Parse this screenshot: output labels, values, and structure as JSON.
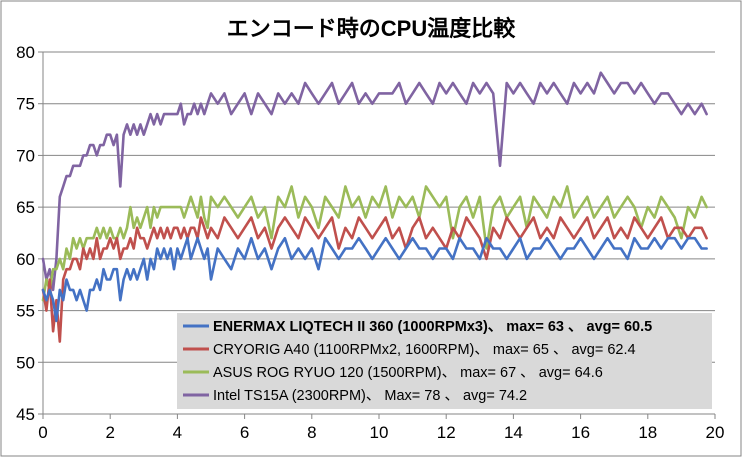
{
  "chart_data": {
    "type": "line",
    "title": "エンコード時のCPU温度比較",
    "xlim": [
      0,
      20
    ],
    "ylim": [
      45,
      80
    ],
    "xticks": [
      0,
      2,
      4,
      6,
      8,
      10,
      12,
      14,
      16,
      18,
      20
    ],
    "yticks": [
      45,
      50,
      55,
      60,
      65,
      70,
      75,
      80
    ],
    "grid": true,
    "legend_position": "bottom-right",
    "series": [
      {
        "name": "ENERMAX LIQTECH II 360 (1000RPMx3)、 max= 63 、 avg= 60.5",
        "color": "#4472C4",
        "bold": true,
        "x": [
          0.0,
          0.1,
          0.2,
          0.3,
          0.4,
          0.5,
          0.6,
          0.7,
          0.8,
          0.9,
          1.0,
          1.1,
          1.2,
          1.3,
          1.4,
          1.5,
          1.6,
          1.7,
          1.8,
          1.9,
          2.0,
          2.1,
          2.2,
          2.3,
          2.4,
          2.5,
          2.6,
          2.7,
          2.8,
          2.9,
          3.0,
          3.1,
          3.2,
          3.3,
          3.4,
          3.5,
          3.6,
          3.7,
          3.8,
          3.9,
          4.0,
          4.1,
          4.2,
          4.3,
          4.4,
          4.5,
          4.6,
          4.7,
          4.8,
          4.9,
          5.0,
          5.2,
          5.4,
          5.6,
          5.8,
          6.0,
          6.2,
          6.4,
          6.6,
          6.8,
          7.0,
          7.2,
          7.4,
          7.6,
          7.8,
          8.0,
          8.2,
          8.4,
          8.6,
          8.8,
          9.0,
          9.2,
          9.4,
          9.6,
          9.8,
          10.0,
          10.2,
          10.4,
          10.6,
          10.8,
          11.0,
          11.2,
          11.4,
          11.6,
          11.8,
          12.0,
          12.2,
          12.4,
          12.6,
          12.8,
          13.0,
          13.2,
          13.4,
          13.6,
          13.8,
          14.0,
          14.2,
          14.4,
          14.6,
          14.8,
          15.0,
          15.2,
          15.4,
          15.6,
          15.8,
          16.0,
          16.2,
          16.4,
          16.6,
          16.8,
          17.0,
          17.2,
          17.4,
          17.6,
          17.8,
          18.0,
          18.2,
          18.4,
          18.6,
          18.8,
          19.0,
          19.2,
          19.4,
          19.6,
          19.75
        ],
        "values": [
          57,
          56,
          57,
          56,
          54,
          57,
          56,
          58,
          57,
          57,
          56,
          57,
          56,
          55,
          57,
          57,
          58,
          57,
          59,
          58,
          58,
          59,
          59,
          56,
          58,
          59,
          58,
          59,
          58,
          59,
          60,
          58,
          60,
          59,
          61,
          60,
          61,
          60,
          61,
          59,
          61,
          60,
          61,
          62,
          60,
          61,
          62,
          61,
          60,
          61,
          58,
          61,
          60,
          59,
          61,
          60,
          62,
          60,
          61,
          59,
          61,
          62,
          60,
          61,
          60,
          61,
          59,
          62,
          61,
          60,
          61,
          61,
          62,
          61,
          60,
          61,
          62,
          61,
          60,
          61,
          62,
          61,
          61,
          60,
          61,
          61,
          60,
          62,
          61,
          61,
          60,
          62,
          61,
          61,
          60,
          61,
          62,
          60,
          61,
          61,
          62,
          61,
          60,
          61,
          61,
          62,
          61,
          60,
          61,
          62,
          61,
          61,
          60,
          62,
          61,
          61,
          62,
          61,
          62,
          62,
          61,
          62,
          62,
          61,
          61
        ]
      },
      {
        "name": "CRYORIG A40 (1100RPMx2, 1600RPM)、 max= 65 、 avg= 62.4",
        "color": "#C0504D",
        "bold": false,
        "x": [
          0.0,
          0.1,
          0.2,
          0.3,
          0.4,
          0.5,
          0.6,
          0.7,
          0.8,
          0.9,
          1.0,
          1.1,
          1.2,
          1.3,
          1.4,
          1.5,
          1.6,
          1.7,
          1.8,
          1.9,
          2.0,
          2.1,
          2.2,
          2.3,
          2.4,
          2.5,
          2.6,
          2.7,
          2.8,
          2.9,
          3.0,
          3.1,
          3.2,
          3.3,
          3.4,
          3.5,
          3.6,
          3.7,
          3.8,
          3.9,
          4.0,
          4.1,
          4.2,
          4.3,
          4.4,
          4.5,
          4.6,
          4.7,
          4.8,
          4.9,
          5.0,
          5.2,
          5.4,
          5.6,
          5.8,
          6.0,
          6.2,
          6.4,
          6.6,
          6.8,
          7.0,
          7.2,
          7.4,
          7.6,
          7.8,
          8.0,
          8.2,
          8.4,
          8.6,
          8.8,
          9.0,
          9.2,
          9.4,
          9.6,
          9.8,
          10.0,
          10.2,
          10.4,
          10.6,
          10.8,
          11.0,
          11.2,
          11.4,
          11.6,
          11.8,
          12.0,
          12.2,
          12.4,
          12.6,
          12.8,
          13.0,
          13.2,
          13.4,
          13.6,
          13.8,
          14.0,
          14.2,
          14.4,
          14.6,
          14.8,
          15.0,
          15.2,
          15.4,
          15.6,
          15.8,
          16.0,
          16.2,
          16.4,
          16.6,
          16.8,
          17.0,
          17.2,
          17.4,
          17.6,
          17.8,
          18.0,
          18.2,
          18.4,
          18.6,
          18.8,
          19.0,
          19.2,
          19.4,
          19.6,
          19.75
        ],
        "values": [
          57,
          55,
          58,
          53,
          56,
          52,
          58,
          59,
          59,
          60,
          60,
          59,
          61,
          60,
          61,
          60,
          62,
          60,
          61,
          61,
          62,
          61,
          62,
          60,
          61,
          61,
          62,
          61,
          63,
          62,
          62,
          61,
          62,
          63,
          62,
          63,
          62,
          63,
          62,
          63,
          63,
          62,
          63,
          62,
          63,
          63,
          62,
          64,
          63,
          62,
          63,
          62,
          64,
          63,
          62,
          63,
          64,
          62,
          63,
          61,
          63,
          64,
          63,
          62,
          64,
          63,
          62,
          63,
          64,
          61,
          63,
          62,
          64,
          63,
          62,
          63,
          64,
          62,
          63,
          61,
          63,
          64,
          62,
          63,
          62,
          61,
          63,
          62,
          64,
          63,
          62,
          60,
          63,
          62,
          64,
          63,
          62,
          63,
          64,
          62,
          63,
          62,
          64,
          63,
          62,
          63,
          64,
          62,
          63,
          64,
          62,
          63,
          62,
          64,
          63,
          62,
          63,
          64,
          62,
          63,
          63,
          62,
          63,
          63,
          62
        ]
      },
      {
        "name": "ASUS ROG RYUO 120 (1500RPM)、 max= 67 、 avg= 64.6",
        "color": "#9BBB59",
        "bold": false,
        "x": [
          0.0,
          0.1,
          0.2,
          0.3,
          0.4,
          0.5,
          0.6,
          0.7,
          0.8,
          0.9,
          1.0,
          1.1,
          1.2,
          1.3,
          1.4,
          1.5,
          1.6,
          1.7,
          1.8,
          1.9,
          2.0,
          2.1,
          2.2,
          2.3,
          2.4,
          2.5,
          2.6,
          2.7,
          2.8,
          2.9,
          3.0,
          3.1,
          3.2,
          3.3,
          3.4,
          3.5,
          3.6,
          3.7,
          3.8,
          3.9,
          4.0,
          4.1,
          4.2,
          4.3,
          4.4,
          4.5,
          4.6,
          4.7,
          4.8,
          4.9,
          5.0,
          5.2,
          5.4,
          5.6,
          5.8,
          6.0,
          6.2,
          6.4,
          6.6,
          6.8,
          7.0,
          7.2,
          7.4,
          7.6,
          7.8,
          8.0,
          8.2,
          8.4,
          8.6,
          8.8,
          9.0,
          9.2,
          9.4,
          9.6,
          9.8,
          10.0,
          10.2,
          10.4,
          10.6,
          10.8,
          11.0,
          11.2,
          11.4,
          11.6,
          11.8,
          12.0,
          12.2,
          12.4,
          12.6,
          12.8,
          13.0,
          13.2,
          13.4,
          13.6,
          13.8,
          14.0,
          14.2,
          14.4,
          14.6,
          14.8,
          15.0,
          15.2,
          15.4,
          15.6,
          15.8,
          16.0,
          16.2,
          16.4,
          16.6,
          16.8,
          17.0,
          17.2,
          17.4,
          17.6,
          17.8,
          18.0,
          18.2,
          18.4,
          18.6,
          18.8,
          19.0,
          19.2,
          19.4,
          19.6,
          19.75
        ],
        "values": [
          56,
          58,
          57,
          59,
          59,
          60,
          59,
          61,
          60,
          62,
          61,
          62,
          61,
          62,
          62,
          62,
          63,
          62,
          63,
          62,
          63,
          62,
          62,
          63,
          62,
          63,
          65,
          63,
          64,
          63,
          64,
          65,
          63,
          65,
          64,
          65,
          65,
          65,
          65,
          65,
          65,
          65,
          64,
          65,
          66,
          65,
          64,
          66,
          64,
          63,
          66,
          65,
          66,
          65,
          64,
          65,
          66,
          64,
          65,
          62,
          66,
          65,
          67,
          64,
          66,
          65,
          63,
          66,
          65,
          64,
          67,
          65,
          66,
          64,
          66,
          65,
          67,
          64,
          66,
          65,
          66,
          64,
          67,
          66,
          65,
          66,
          62,
          65,
          66,
          64,
          66,
          61,
          65,
          66,
          64,
          65,
          66,
          63,
          66,
          65,
          64,
          66,
          65,
          67,
          64,
          65,
          66,
          64,
          65,
          66,
          64,
          65,
          66,
          65,
          63,
          65,
          64,
          66,
          65,
          64,
          62,
          65,
          64,
          66,
          65
        ]
      },
      {
        "name": "Intel TS15A (2300RPM)、 Max= 78 、 avg= 74.2",
        "color": "#8064A2",
        "bold": false,
        "x": [
          0.0,
          0.1,
          0.2,
          0.3,
          0.4,
          0.5,
          0.6,
          0.7,
          0.8,
          0.9,
          1.0,
          1.1,
          1.2,
          1.3,
          1.4,
          1.5,
          1.6,
          1.7,
          1.8,
          1.9,
          2.0,
          2.1,
          2.2,
          2.3,
          2.4,
          2.5,
          2.6,
          2.7,
          2.8,
          2.9,
          3.0,
          3.1,
          3.2,
          3.3,
          3.4,
          3.5,
          3.6,
          3.7,
          3.8,
          3.9,
          4.0,
          4.1,
          4.2,
          4.3,
          4.4,
          4.5,
          4.6,
          4.7,
          4.8,
          4.9,
          5.0,
          5.2,
          5.4,
          5.6,
          5.8,
          6.0,
          6.2,
          6.4,
          6.6,
          6.8,
          7.0,
          7.2,
          7.4,
          7.6,
          7.8,
          8.0,
          8.2,
          8.4,
          8.6,
          8.8,
          9.0,
          9.2,
          9.4,
          9.6,
          9.8,
          10.0,
          10.2,
          10.4,
          10.6,
          10.8,
          11.0,
          11.2,
          11.4,
          11.6,
          11.8,
          12.0,
          12.2,
          12.4,
          12.6,
          12.8,
          13.0,
          13.2,
          13.4,
          13.6,
          13.8,
          14.0,
          14.2,
          14.4,
          14.6,
          14.8,
          15.0,
          15.2,
          15.4,
          15.6,
          15.8,
          16.0,
          16.2,
          16.4,
          16.6,
          16.8,
          17.0,
          17.2,
          17.4,
          17.6,
          17.8,
          18.0,
          18.2,
          18.4,
          18.6,
          18.8,
          19.0,
          19.2,
          19.4,
          19.6,
          19.75
        ],
        "values": [
          60,
          58,
          59,
          57,
          60,
          66,
          67,
          68,
          68,
          69,
          69,
          69,
          70,
          70,
          71,
          71,
          70,
          71,
          71,
          72,
          72,
          71,
          72,
          67,
          72,
          73,
          72,
          73,
          72,
          73,
          72,
          73,
          74,
          73,
          74,
          73,
          74,
          74,
          74,
          74,
          74,
          75,
          73,
          74,
          74,
          75,
          74,
          75,
          74,
          75,
          76,
          75,
          76,
          74,
          75,
          76,
          74,
          76,
          75,
          74,
          76,
          75,
          76,
          75,
          77,
          76,
          75,
          76,
          77,
          75,
          76,
          77,
          75,
          76,
          75,
          76,
          76,
          76,
          77,
          75,
          76,
          77,
          76,
          75,
          77,
          76,
          77,
          76,
          75,
          77,
          76,
          77,
          76,
          69,
          77,
          76,
          77,
          76,
          75,
          77,
          76,
          77,
          76,
          75,
          77,
          76,
          77,
          76,
          78,
          77,
          76,
          77,
          77,
          76,
          77,
          76,
          75,
          76,
          76,
          75,
          74,
          75,
          74,
          75,
          74
        ]
      }
    ]
  }
}
